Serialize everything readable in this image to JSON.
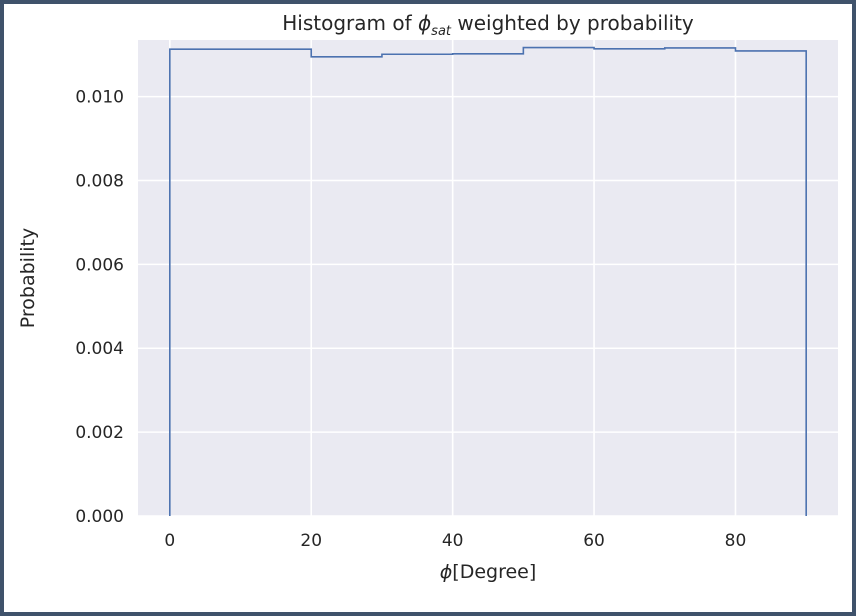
{
  "chart_data": {
    "type": "histogram",
    "title": {
      "prefix": "Histogram of ",
      "symbol": "ϕ",
      "subscript": "sat",
      "suffix": " weighted by probability"
    },
    "xlabel": {
      "symbol": "ϕ",
      "text": "[Degree]"
    },
    "ylabel": "Probability",
    "xlim": [
      -4.5,
      94.5
    ],
    "ylim": [
      0,
      0.01135
    ],
    "xticks": [
      0,
      20,
      40,
      60,
      80
    ],
    "xtick_labels": [
      "0",
      "20",
      "40",
      "60",
      "80"
    ],
    "yticks": [
      0,
      0.002,
      0.004,
      0.006,
      0.008,
      0.01
    ],
    "ytick_labels": [
      "0.000",
      "0.002",
      "0.004",
      "0.006",
      "0.008",
      "0.010"
    ],
    "grid": true,
    "histtype": "step",
    "bin_edges": [
      0,
      10,
      20,
      30,
      40,
      50,
      60,
      70,
      80,
      90
    ],
    "values": [
      0.01113,
      0.01113,
      0.01095,
      0.01101,
      0.01102,
      0.01117,
      0.01114,
      0.01116,
      0.01109
    ],
    "colors": {
      "line": "#4c72b0",
      "plot_bg": "#eaeaf2",
      "grid": "#ffffff",
      "text": "#262626"
    }
  }
}
